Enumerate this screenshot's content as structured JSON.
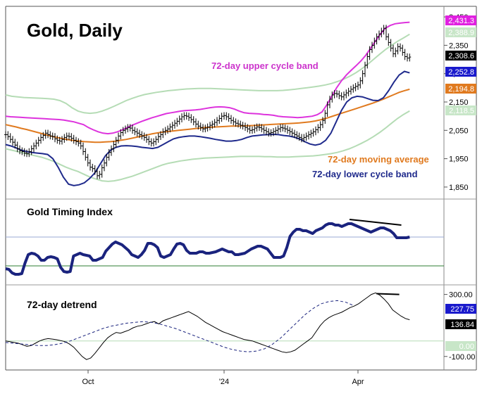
{
  "chart_data": [
    {
      "type": "line",
      "title": "Gold, Daily",
      "x_axis": {
        "ticks": [
          "Oct",
          "'24",
          "Apr"
        ]
      },
      "y_axis": {
        "ticks": [
          2450,
          2350,
          2250,
          2150,
          2050,
          1950,
          1850
        ],
        "tick_labels": [
          "2,450",
          "2,350",
          "2,250",
          "2,150",
          "2,050",
          "1,950",
          "1,850"
        ],
        "ylim": [
          1825,
          2475
        ]
      },
      "annotations": [
        {
          "text": "72-day upper cycle band",
          "color": "#cc33cc"
        },
        {
          "text": "72-day moving average",
          "color": "#e07a1f"
        },
        {
          "text": "72-day lower cycle band",
          "color": "#1f2a8c"
        }
      ],
      "last_value_badges": [
        {
          "value": "2,431.3",
          "color": "#e020e0",
          "text_color": "#ffffff"
        },
        {
          "value": "2,388.9",
          "color": "#c8e6c8",
          "text_color": "#ffffff"
        },
        {
          "value": "2,308.6",
          "color": "#000000",
          "text_color": "#ffffff"
        },
        {
          "value": "2,252.8",
          "color": "#1a1acc",
          "text_color": "#ffffff"
        },
        {
          "value": "2,194.8",
          "color": "#e07a1f",
          "text_color": "#ffffff"
        },
        {
          "value": "2,118.5",
          "color": "#c8e6c8",
          "text_color": "#ffffff"
        }
      ],
      "series": [
        {
          "name": "Gold price",
          "style": "ohlc-bars",
          "color": "#000000",
          "values": [
            2035,
            2028,
            2018,
            2008,
            1998,
            1985,
            1978,
            1975,
            1970,
            1968,
            1975,
            1985,
            1995,
            2005,
            2015,
            2025,
            2032,
            2040,
            2035,
            2030,
            2028,
            2020,
            2015,
            2012,
            2018,
            2025,
            2030,
            2028,
            2022,
            2015,
            2010,
            2005,
            1995,
            1975,
            1955,
            1935,
            1920,
            1915,
            1905,
            1890,
            1895,
            1918,
            1935,
            1955,
            1972,
            1985,
            2000,
            2015,
            2030,
            2042,
            2050,
            2055,
            2060,
            2058,
            2050,
            2045,
            2040,
            2035,
            2030,
            2025,
            2018,
            2010,
            2005,
            2010,
            2018,
            2028,
            2035,
            2045,
            2050,
            2055,
            2062,
            2068,
            2075,
            2082,
            2090,
            2098,
            2102,
            2100,
            2095,
            2088,
            2080,
            2072,
            2065,
            2060,
            2055,
            2058,
            2062,
            2068,
            2072,
            2078,
            2085,
            2092,
            2100,
            2102,
            2098,
            2092,
            2085,
            2080,
            2075,
            2072,
            2068,
            2065,
            2060,
            2055,
            2050,
            2052,
            2058,
            2062,
            2060,
            2055,
            2050,
            2045,
            2040,
            2042,
            2046,
            2050,
            2055,
            2060,
            2058,
            2055,
            2050,
            2045,
            2040,
            2035,
            2030,
            2025,
            2020,
            2025,
            2030,
            2035,
            2040,
            2045,
            2052,
            2060,
            2070,
            2085,
            2110,
            2140,
            2160,
            2175,
            2180,
            2178,
            2172,
            2168,
            2175,
            2182,
            2188,
            2195,
            2200,
            2205,
            2210,
            2225,
            2250,
            2280,
            2310,
            2335,
            2350,
            2365,
            2380,
            2390,
            2400,
            2410,
            2380,
            2360,
            2340,
            2320,
            2330,
            2345,
            2340,
            2325,
            2310,
            2305,
            2308.6
          ]
        },
        {
          "name": "72-day upper cycle band",
          "color": "#dd33dd",
          "values": [
            2100,
            2098,
            2097,
            2096,
            2095,
            2094,
            2093,
            2092,
            2091,
            2090,
            2089,
            2088,
            2086,
            2083,
            2080,
            2075,
            2070,
            2060,
            2052,
            2045,
            2040,
            2038,
            2040,
            2045,
            2052,
            2060,
            2068,
            2075,
            2082,
            2088,
            2094,
            2099,
            2104,
            2109,
            2112,
            2115,
            2118,
            2120,
            2121,
            2122,
            2124,
            2127,
            2130,
            2132,
            2133,
            2132,
            2130,
            2125,
            2118,
            2112,
            2110,
            2109,
            2108,
            2106,
            2105,
            2103,
            2100,
            2098,
            2097,
            2096,
            2095,
            2096,
            2098,
            2100,
            2105,
            2115,
            2140,
            2170,
            2200,
            2225,
            2245,
            2262,
            2278,
            2295,
            2315,
            2340,
            2365,
            2390,
            2410,
            2420,
            2426,
            2428,
            2430,
            2431.3
          ]
        },
        {
          "name": "72-day moving average",
          "color": "#e07a1f",
          "values": [
            2070,
            2066,
            2062,
            2057,
            2053,
            2048,
            2043,
            2038,
            2033,
            2028,
            2024,
            2020,
            2017,
            2014,
            2012,
            2010,
            2009,
            2008,
            2008,
            2009,
            2010,
            2012,
            2015,
            2018,
            2022,
            2026,
            2030,
            2034,
            2038,
            2041,
            2044,
            2046,
            2048,
            2050,
            2052,
            2054,
            2056,
            2058,
            2060,
            2061,
            2062,
            2063,
            2064,
            2065,
            2065,
            2066,
            2066,
            2067,
            2068,
            2069,
            2070,
            2071,
            2072,
            2073,
            2074,
            2075,
            2076,
            2078,
            2080,
            2083,
            2087,
            2092,
            2098,
            2104,
            2110,
            2116,
            2122,
            2128,
            2134,
            2140,
            2146,
            2153,
            2160,
            2168,
            2176,
            2184,
            2190,
            2194.8
          ]
        },
        {
          "name": "72-day lower cycle band",
          "color": "#1f2a8c",
          "values": [
            2000,
            1995,
            1988,
            1980,
            1975,
            1972,
            1970,
            1968,
            1965,
            1950,
            1920,
            1885,
            1860,
            1855,
            1858,
            1865,
            1880,
            1900,
            1930,
            1960,
            1980,
            1990,
            1995,
            1996,
            1995,
            1993,
            1990,
            1988,
            1986,
            1990,
            2000,
            2010,
            2020,
            2025,
            2028,
            2030,
            2030,
            2028,
            2025,
            2022,
            2018,
            2015,
            2012,
            2012,
            2014,
            2018,
            2025,
            2030,
            2032,
            2034,
            2035,
            2036,
            2035,
            2032,
            2030,
            2026,
            2020,
            2010,
            2002,
            1998,
            2002,
            2015,
            2040,
            2080,
            2120,
            2150,
            2165,
            2170,
            2168,
            2162,
            2156,
            2155,
            2165,
            2190,
            2220,
            2245,
            2258,
            2252.8
          ]
        },
        {
          "name": "upper outer band",
          "color": "#b5dcb5",
          "values": [
            2175,
            2170,
            2168,
            2166,
            2165,
            2164,
            2163,
            2162,
            2160,
            2155,
            2145,
            2130,
            2118,
            2112,
            2110,
            2112,
            2118,
            2126,
            2135,
            2145,
            2155,
            2163,
            2170,
            2176,
            2180,
            2184,
            2187,
            2190,
            2192,
            2194,
            2196,
            2197,
            2198,
            2198,
            2198,
            2197,
            2196,
            2195,
            2194,
            2193,
            2192,
            2191,
            2190,
            2190,
            2190,
            2190,
            2191,
            2193,
            2195,
            2198,
            2200,
            2203,
            2206,
            2210,
            2215,
            2222,
            2230,
            2240,
            2252,
            2266,
            2282,
            2300,
            2318,
            2335,
            2350,
            2364,
            2376,
            2388.9
          ]
        },
        {
          "name": "lower outer band",
          "color": "#b5dcb5",
          "values": [
            1985,
            1980,
            1975,
            1970,
            1965,
            1960,
            1955,
            1948,
            1940,
            1930,
            1920,
            1912,
            1905,
            1895,
            1885,
            1878,
            1872,
            1870,
            1872,
            1876,
            1882,
            1888,
            1896,
            1904,
            1912,
            1920,
            1928,
            1934,
            1938,
            1942,
            1945,
            1948,
            1950,
            1952,
            1953,
            1954,
            1955,
            1956,
            1957,
            1958,
            1958,
            1958,
            1958,
            1957,
            1957,
            1956,
            1956,
            1956,
            1957,
            1958,
            1959,
            1960,
            1962,
            1965,
            1968,
            1972,
            1978,
            1985,
            1994,
            2004,
            2015,
            2028,
            2042,
            2058,
            2075,
            2092,
            2106,
            2118.5
          ]
        }
      ]
    },
    {
      "type": "line",
      "title": "Gold Timing Index",
      "series": [
        {
          "name": "Gold Timing Index",
          "color": "#1a237e",
          "values": [
            10,
            9,
            4,
            2,
            2,
            3,
            18,
            30,
            32,
            31,
            28,
            22,
            22,
            26,
            27,
            26,
            24,
            12,
            6,
            5,
            6,
            28,
            30,
            32,
            30,
            29,
            28,
            22,
            22,
            24,
            26,
            35,
            40,
            45,
            48,
            46,
            44,
            40,
            36,
            30,
            28,
            26,
            30,
            36,
            46,
            46,
            44,
            40,
            28,
            26,
            28,
            30,
            38,
            45,
            46,
            44,
            36,
            32,
            32,
            32,
            34,
            34,
            32,
            32,
            33,
            34,
            36,
            38,
            36,
            34,
            34,
            30,
            30,
            31,
            32,
            35,
            38,
            40,
            42,
            42,
            40,
            38,
            32,
            26,
            26,
            26,
            28,
            40,
            56,
            62,
            66,
            66,
            64,
            64,
            62,
            60,
            64,
            66,
            68,
            72,
            74,
            74,
            72,
            72,
            70,
            72,
            74,
            74,
            72,
            70,
            68,
            66,
            64,
            62,
            64,
            66,
            68,
            68,
            66,
            64,
            60,
            54,
            54,
            54,
            54,
            55
          ]
        },
        {
          "name": "trendline",
          "color": "#000000",
          "values": [
            80,
            72
          ]
        }
      ],
      "reference_lines": [
        {
          "name": "upper level",
          "color": "#9aa9d6"
        },
        {
          "name": "lower level",
          "color": "#2e7d32"
        }
      ]
    },
    {
      "type": "line",
      "title": "72-day detrend",
      "y_axis": {
        "ticks": [
          300,
          -100
        ],
        "tick_labels": [
          "300.00",
          "-100.00"
        ],
        "ylim": [
          -160,
          330
        ]
      },
      "last_value_badges": [
        {
          "value": "227.75",
          "color": "#1a1acc",
          "text_color": "#ffffff"
        },
        {
          "value": "136.84",
          "color": "#000000",
          "text_color": "#ffffff"
        },
        {
          "value": "0.00",
          "color": "#c8e6c8",
          "text_color": "#ffffff"
        }
      ],
      "series": [
        {
          "name": "72-day detrend",
          "color": "#000000",
          "values": [
            0,
            -5,
            -10,
            -15,
            -25,
            -35,
            -30,
            -15,
            0,
            10,
            15,
            12,
            8,
            2,
            -5,
            -20,
            -40,
            -70,
            -100,
            -120,
            -110,
            -80,
            -45,
            -10,
            20,
            40,
            55,
            50,
            60,
            70,
            85,
            95,
            100,
            110,
            120,
            125,
            110,
            130,
            140,
            150,
            160,
            170,
            180,
            190,
            175,
            160,
            140,
            120,
            105,
            90,
            75,
            60,
            50,
            40,
            30,
            20,
            10,
            5,
            0,
            -10,
            -20,
            -30,
            -40,
            -50,
            -60,
            -70,
            -75,
            -70,
            -60,
            -40,
            -20,
            0,
            20,
            60,
            100,
            130,
            150,
            165,
            175,
            185,
            200,
            215,
            225,
            240,
            260,
            280,
            300,
            310,
            295,
            270,
            240,
            200,
            180,
            160,
            145,
            136.84
          ]
        },
        {
          "name": "smoothed",
          "color": "#1a237e",
          "style": "dashed",
          "values": [
            -10,
            -15,
            -20,
            -25,
            -30,
            -30,
            -25,
            -15,
            0,
            20,
            40,
            60,
            80,
            95,
            105,
            115,
            120,
            125,
            120,
            110,
            95,
            80,
            60,
            40,
            20,
            0,
            -20,
            -40,
            -55,
            -65,
            -70,
            -65,
            -50,
            -20,
            20,
            70,
            120,
            170,
            210,
            240,
            255,
            260,
            250,
            227.75
          ]
        },
        {
          "name": "trendline",
          "color": "#000000",
          "values": [
            305,
            300
          ]
        }
      ]
    }
  ]
}
